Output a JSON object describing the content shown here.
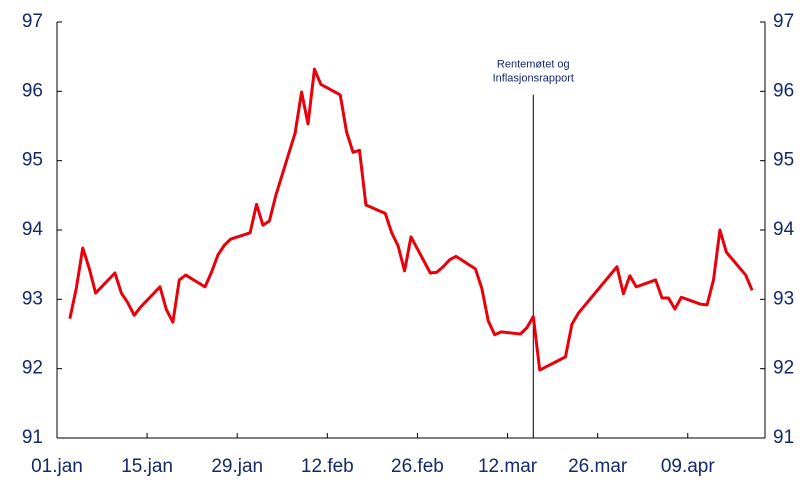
{
  "chart_data": {
    "type": "line",
    "x": [
      2,
      3,
      4,
      5,
      6,
      9,
      10,
      11,
      12,
      13,
      16,
      17,
      18,
      19,
      20,
      23,
      24,
      25,
      26,
      27,
      30,
      31,
      32,
      33,
      34,
      37,
      38,
      39,
      40,
      41,
      44,
      45,
      46,
      47,
      48,
      51,
      52,
      53,
      54,
      55,
      58,
      59,
      60,
      61,
      62,
      65,
      66,
      67,
      68,
      69,
      72,
      73,
      74,
      75,
      79,
      80,
      81,
      87,
      88,
      89,
      90,
      93,
      94,
      95,
      96,
      97,
      100,
      101,
      102,
      103,
      104,
      107,
      108
    ],
    "series": [
      {
        "color": "#e8000b",
        "values": [
          92.72,
          93.16,
          93.74,
          93.45,
          93.09,
          93.38,
          93.09,
          92.95,
          92.77,
          92.89,
          93.18,
          92.85,
          92.67,
          93.28,
          93.35,
          93.18,
          93.39,
          93.64,
          93.78,
          93.87,
          93.96,
          94.37,
          94.07,
          94.13,
          94.5,
          95.4,
          95.99,
          95.53,
          96.32,
          96.1,
          95.95,
          95.41,
          95.12,
          95.15,
          94.36,
          94.24,
          93.96,
          93.77,
          93.41,
          93.9,
          93.38,
          93.39,
          93.47,
          93.57,
          93.62,
          93.44,
          93.16,
          92.69,
          92.49,
          92.53,
          92.5,
          92.59,
          92.75,
          91.98,
          92.17,
          92.64,
          92.8,
          93.47,
          93.08,
          93.34,
          93.18,
          93.28,
          93.02,
          93.02,
          92.86,
          93.03,
          92.93,
          92.92,
          93.28,
          94.0,
          93.68,
          93.35,
          93.13
        ]
      }
    ],
    "xlim": [
      0,
      110
    ],
    "xticks": [
      {
        "value": 0,
        "label": "01.jan"
      },
      {
        "value": 14,
        "label": "15.jan"
      },
      {
        "value": 28,
        "label": "29.jan"
      },
      {
        "value": 42,
        "label": "12.feb"
      },
      {
        "value": 56,
        "label": "26.feb"
      },
      {
        "value": 70,
        "label": "12.mar"
      },
      {
        "value": 84,
        "label": "26.mar"
      },
      {
        "value": 98,
        "label": "09.apr"
      }
    ],
    "ylim": [
      91,
      97
    ],
    "yticks": [
      91,
      92,
      93,
      94,
      95,
      96,
      97
    ],
    "annotation": {
      "x": 74,
      "y": 95.95,
      "text": [
        "Rentemøtet og",
        "Inflasjonsrapport"
      ]
    }
  }
}
